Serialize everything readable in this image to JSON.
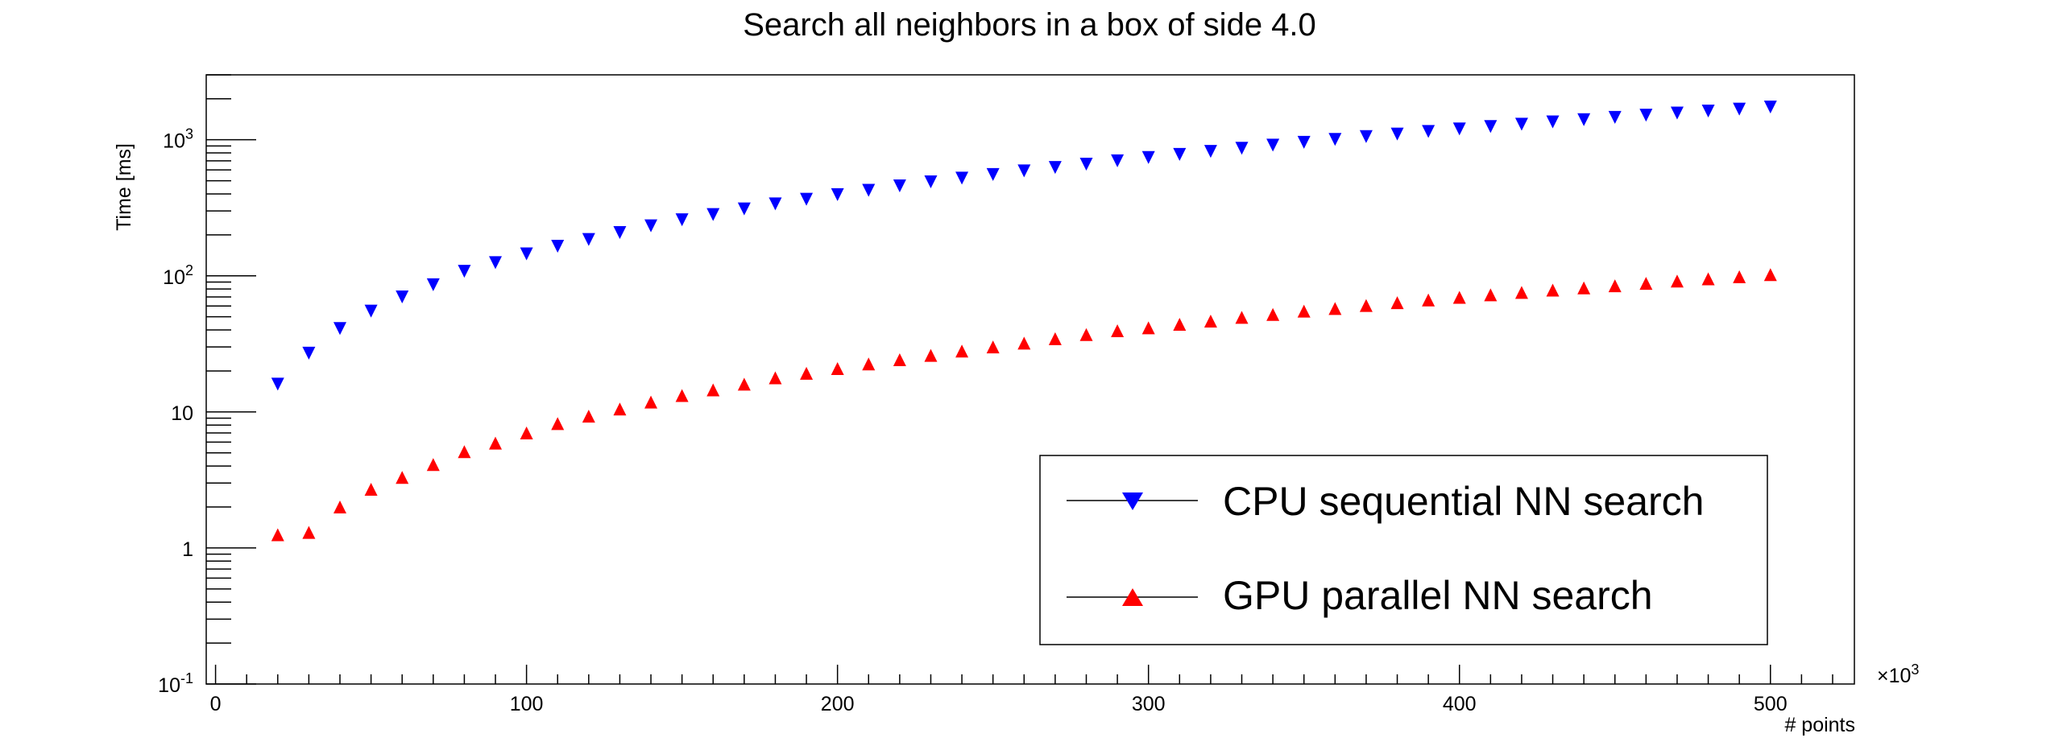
{
  "chart_data": {
    "type": "scatter",
    "title": "Search all neighbors in a box of side 4.0",
    "xlabel": "# points",
    "ylabel": "Time [ms]",
    "x_multiplier_label": "×10",
    "x_multiplier_exponent": "3",
    "xlim": [
      -3,
      527
    ],
    "ylim": [
      0.1,
      3000
    ],
    "y_scale": "log",
    "grid": false,
    "legend_position": "bottom-right",
    "x_ticks": [
      0,
      100,
      200,
      300,
      400,
      500
    ],
    "x_tick_labels": [
      "0",
      "100",
      "200",
      "300",
      "400",
      "500"
    ],
    "y_ticks": [
      {
        "value": 0.1,
        "base": "10",
        "exp": "-1"
      },
      {
        "value": 1,
        "base": "1",
        "exp": ""
      },
      {
        "value": 10,
        "base": "10",
        "exp": ""
      },
      {
        "value": 100,
        "base": "10",
        "exp": "2"
      },
      {
        "value": 1000,
        "base": "10",
        "exp": "3"
      }
    ],
    "x": [
      20,
      30,
      40,
      50,
      60,
      70,
      80,
      90,
      100,
      110,
      120,
      130,
      140,
      150,
      160,
      170,
      180,
      190,
      200,
      210,
      220,
      230,
      240,
      250,
      260,
      270,
      280,
      290,
      300,
      310,
      320,
      330,
      340,
      350,
      360,
      370,
      380,
      390,
      400,
      410,
      420,
      430,
      440,
      450,
      460,
      470,
      480,
      490,
      500
    ],
    "series": [
      {
        "name": "CPU sequential NN search",
        "marker": "triangle-down",
        "color": "#0000ff",
        "values": [
          16,
          27,
          41,
          55,
          70,
          86,
          108,
          125,
          145,
          165,
          185,
          208,
          233,
          258,
          282,
          310,
          338,
          365,
          395,
          425,
          458,
          490,
          522,
          555,
          590,
          626,
          662,
          700,
          740,
          780,
          822,
          866,
          912,
          958,
          1006,
          1055,
          1100,
          1150,
          1200,
          1250,
          1300,
          1352,
          1405,
          1460,
          1515,
          1570,
          1625,
          1680,
          1740
        ]
      },
      {
        "name": "GPU parallel NN search",
        "marker": "triangle-up",
        "color": "#ff0000",
        "values": [
          1.25,
          1.3,
          2.0,
          2.7,
          3.3,
          4.1,
          5.1,
          5.9,
          7.0,
          8.2,
          9.3,
          10.5,
          11.8,
          13.2,
          14.5,
          16.0,
          17.8,
          19.2,
          20.8,
          22.5,
          24.2,
          26.0,
          28.0,
          30.0,
          32.0,
          34.5,
          37.0,
          39.5,
          41.5,
          44.0,
          46.5,
          49.5,
          52.0,
          55.0,
          57.5,
          60.5,
          63.5,
          66.5,
          69.5,
          72.5,
          75.5,
          78.5,
          81.5,
          84.5,
          88.0,
          91.5,
          95.0,
          98.5,
          102.0
        ]
      }
    ]
  }
}
